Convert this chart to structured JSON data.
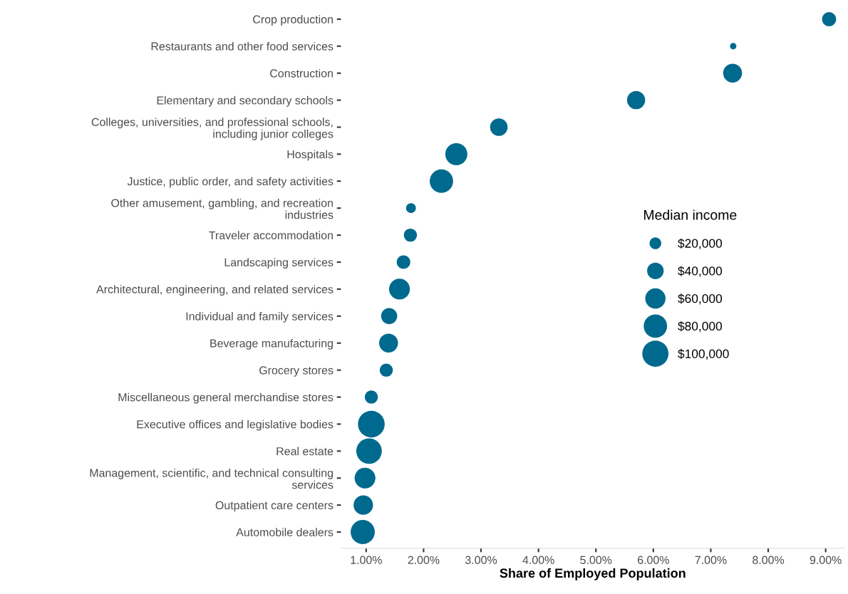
{
  "chart_data": {
    "type": "bubble",
    "xlabel": "Share of Employed Population",
    "legend_title": "Median income",
    "orientation": "horizontal",
    "categories": [
      "Crop production",
      "Restaurants and other food services",
      "Construction",
      "Elementary and secondary schools",
      "Colleges, universities, and professional schools,\nincluding junior colleges",
      "Hospitals",
      "Justice, public order, and safety activities",
      "Other amusement, gambling, and recreation\nindustries",
      "Traveler accommodation",
      "Landscaping services",
      "Architectural, engineering, and related services",
      "Individual and family services",
      "Beverage manufacturing",
      "Grocery stores",
      "Miscellaneous general merchandise stores",
      "Executive offices and legislative bodies",
      "Real estate",
      "Management, scientific, and technical consulting\nservices",
      "Outpatient care centers",
      "Automobile dealers"
    ],
    "series": [
      {
        "color": "#006a8e",
        "values": [
          9.06,
          7.39,
          7.38,
          5.7,
          3.31,
          2.57,
          2.31,
          1.78,
          1.77,
          1.65,
          1.58,
          1.4,
          1.39,
          1.35,
          1.09,
          1.09,
          1.05,
          0.98,
          0.95,
          0.94
        ],
        "sizes": [
          29000,
          6000,
          52000,
          48000,
          45000,
          71000,
          80000,
          14000,
          25000,
          27000,
          63000,
          38000,
          52000,
          25000,
          25000,
          104000,
          95000,
          63000,
          55000,
          85000
        ]
      }
    ],
    "size_legend": [
      {
        "value": 20000,
        "label": "$20,000"
      },
      {
        "value": 40000,
        "label": "$40,000"
      },
      {
        "value": 60000,
        "label": "$60,000"
      },
      {
        "value": 80000,
        "label": "$80,000"
      },
      {
        "value": 100000,
        "label": "$100,000"
      }
    ],
    "xlim": [
      0.56,
      9.33
    ],
    "xticks": [
      {
        "value": 1,
        "label": "1.00%"
      },
      {
        "value": 2,
        "label": "2.00%"
      },
      {
        "value": 3,
        "label": "3.00%"
      },
      {
        "value": 4,
        "label": "4.00%"
      },
      {
        "value": 5,
        "label": "5.00%"
      },
      {
        "value": 6,
        "label": "6.00%"
      },
      {
        "value": 7,
        "label": "7.00%"
      },
      {
        "value": 8,
        "label": "8.00%"
      },
      {
        "value": 9,
        "label": "9.00%"
      }
    ],
    "grid": false
  }
}
